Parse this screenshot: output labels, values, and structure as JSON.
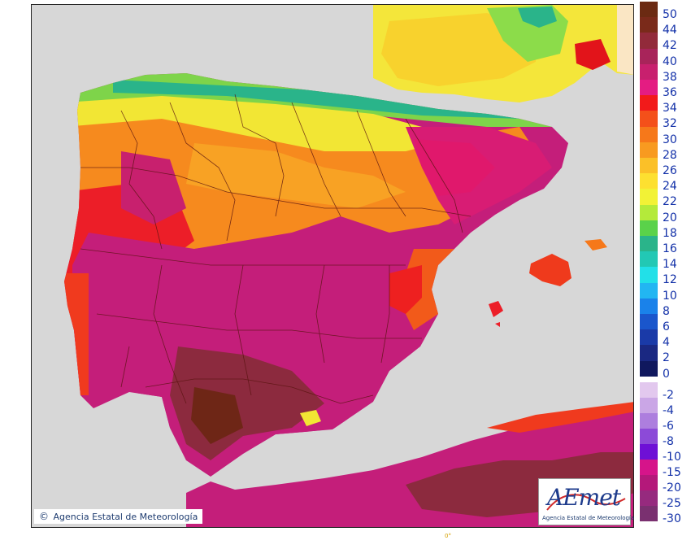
{
  "credit": {
    "copyright_symbol": "©",
    "text": "Agencia Estatal de Meteorología"
  },
  "logo": {
    "name": "AEmet",
    "subtitle": "Agencia Estatal de Meteorología"
  },
  "axis_mark": "0°",
  "legend": {
    "upper": [
      {
        "label": "50",
        "color": "#6b2a12"
      },
      {
        "label": "44",
        "color": "#7a2a1a"
      },
      {
        "label": "42",
        "color": "#922a3a"
      },
      {
        "label": "40",
        "color": "#a8245a"
      },
      {
        "label": "38",
        "color": "#c8206e"
      },
      {
        "label": "36",
        "color": "#e41c82"
      },
      {
        "label": "34",
        "color": "#f21a1a"
      },
      {
        "label": "32",
        "color": "#f4501a"
      },
      {
        "label": "30",
        "color": "#f6781a"
      },
      {
        "label": "28",
        "color": "#f89a20"
      },
      {
        "label": "26",
        "color": "#fbc028"
      },
      {
        "label": "24",
        "color": "#fde030"
      },
      {
        "label": "22",
        "color": "#f2f236"
      },
      {
        "label": "20",
        "color": "#b4ea3a"
      },
      {
        "label": "18",
        "color": "#5ad24a"
      },
      {
        "label": "16",
        "color": "#2ab48a"
      },
      {
        "label": "14",
        "color": "#22c8b4"
      },
      {
        "label": "12",
        "color": "#22e0e8"
      },
      {
        "label": "10",
        "color": "#22b6f2"
      },
      {
        "label": "8",
        "color": "#1a82ea"
      },
      {
        "label": "6",
        "color": "#1a56cc"
      },
      {
        "label": "4",
        "color": "#1a3aa8"
      },
      {
        "label": "2",
        "color": "#1a2882"
      },
      {
        "label": "0",
        "color": "#10185e"
      }
    ],
    "lower": [
      {
        "label": "-2",
        "color": "#e2c8ee"
      },
      {
        "label": "-4",
        "color": "#caa6e6"
      },
      {
        "label": "-6",
        "color": "#ad7ede"
      },
      {
        "label": "-8",
        "color": "#8c4ad8"
      },
      {
        "label": "-10",
        "color": "#6e10d6"
      },
      {
        "label": "-15",
        "color": "#d6148a"
      },
      {
        "label": "-20",
        "color": "#b4187a"
      },
      {
        "label": "-25",
        "color": "#962a7e"
      },
      {
        "label": "-30",
        "color": "#7a3070"
      }
    ]
  }
}
